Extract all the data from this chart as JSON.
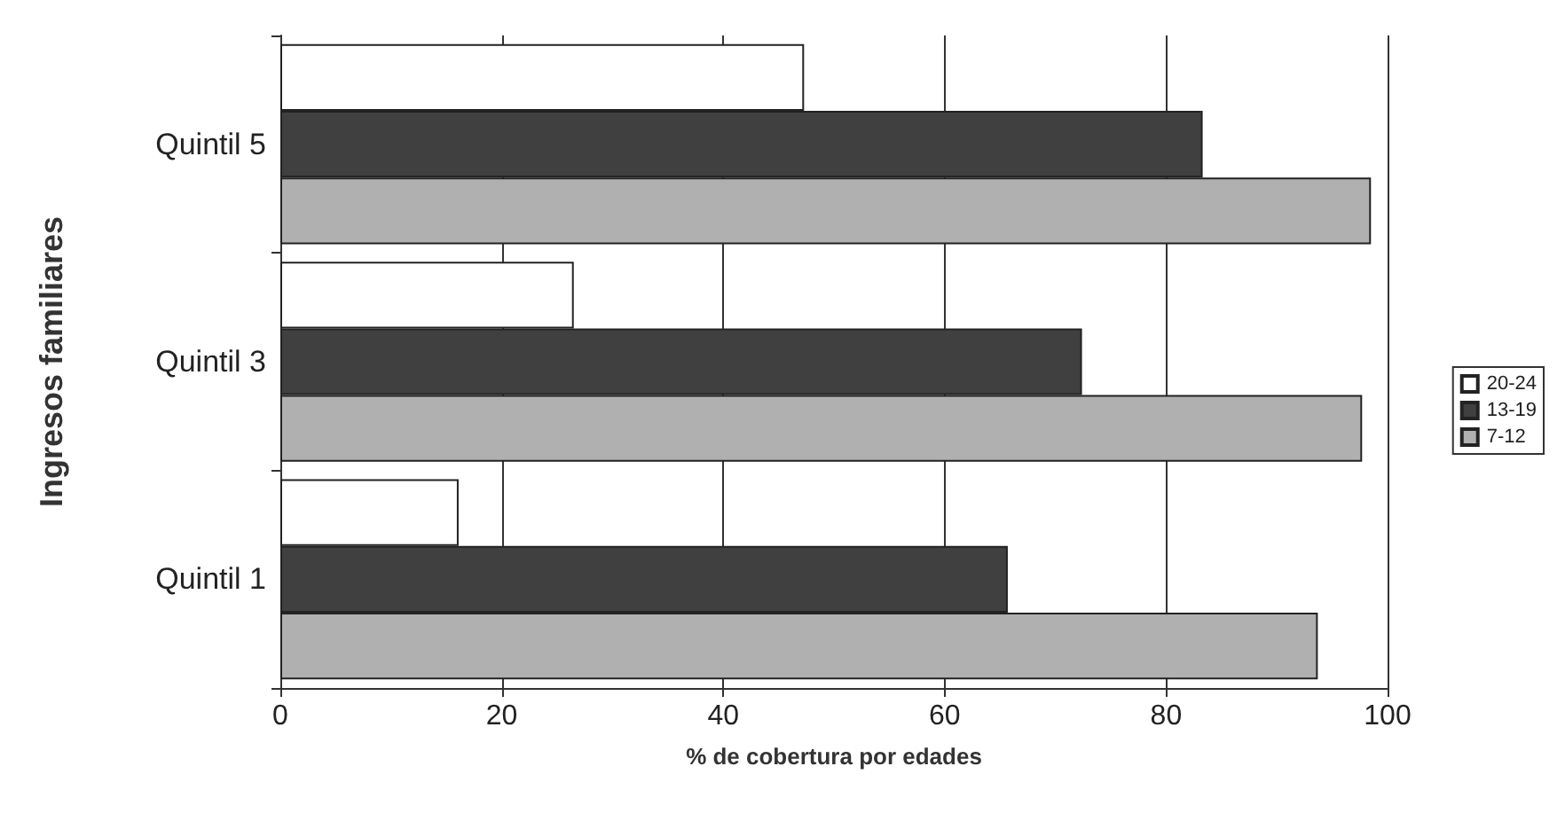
{
  "chart_data": {
    "type": "bar",
    "orientation": "horizontal",
    "xlabel": "% de cobertura por edades",
    "ylabel": "Ingresos familiares",
    "categories": [
      "Quintil 5",
      "Quintil 3",
      "Quintil 1"
    ],
    "series": [
      {
        "name": "20-24",
        "color": "#ffffff",
        "values": [
          47.3,
          26.5,
          16.1
        ]
      },
      {
        "name": "13-19",
        "color": "#404040",
        "values": [
          83.3,
          72.4,
          65.7
        ]
      },
      {
        "name": "7-12",
        "color": "#b0b0b0",
        "values": [
          98.5,
          97.7,
          93.7
        ]
      }
    ],
    "xlim": [
      0,
      100
    ],
    "xticks": [
      0,
      20,
      40,
      60,
      80,
      100
    ],
    "grid": "x",
    "legend": "right"
  }
}
